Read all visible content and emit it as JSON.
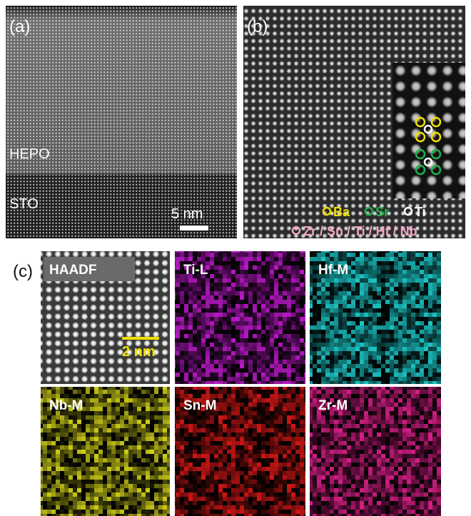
{
  "panel_a": {
    "label": "(a)",
    "top_layer": "HEPO",
    "substrate": "STO",
    "scale_bar": "5 nm"
  },
  "panel_b": {
    "label": "(b)",
    "legend": [
      "Ba",
      "Sr",
      "Ti"
    ],
    "b_site": "Zr / Sn / Ti / Hf / Nb"
  },
  "panel_c": {
    "label": "(c)",
    "maps": [
      "HAADF",
      "Ti-L",
      "Hf-M",
      "Nb-M",
      "Sn-M",
      "Zr-M"
    ],
    "scale_bar": "2 nm"
  }
}
